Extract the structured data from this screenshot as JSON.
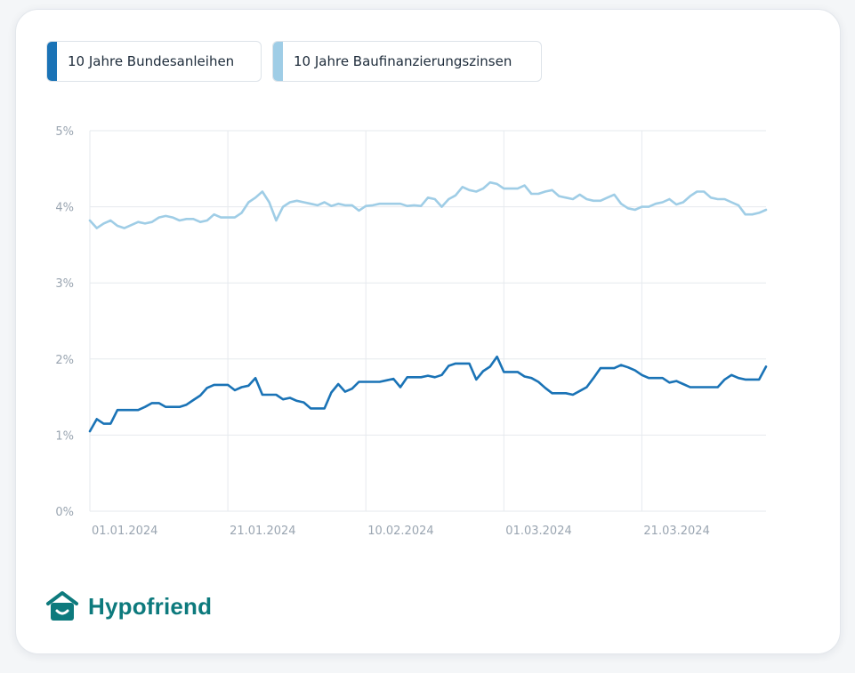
{
  "legend": [
    {
      "label": "10 Jahre Bundesanleihen",
      "color": "#1a73b6"
    },
    {
      "label": "10 Jahre Baufinanzierungszinsen",
      "color": "#9fcde6"
    }
  ],
  "brand": {
    "name": "Hypofriend",
    "color": "#0d7a7d",
    "logo_icon": "house-smile-icon"
  },
  "chart_data": {
    "type": "line",
    "title": "",
    "xlabel": "",
    "ylabel": "",
    "ylim": [
      0,
      5
    ],
    "xlim": [
      "2024-01-01",
      "2024-04-08"
    ],
    "grid": true,
    "yticks": [
      "0%",
      "1%",
      "2%",
      "3%",
      "4%",
      "5%"
    ],
    "xticks": [
      {
        "date": "2024-01-01",
        "label": "01.01.2024"
      },
      {
        "date": "2024-01-21",
        "label": "21.01.2024"
      },
      {
        "date": "2024-02-10",
        "label": "10.02.2024"
      },
      {
        "date": "2024-03-01",
        "label": "01.03.2024"
      },
      {
        "date": "2024-03-21",
        "label": "21.03.2024"
      }
    ],
    "series": [
      {
        "name": "10 Jahre Bundesanleihen",
        "color": "#1a73b6",
        "points": [
          [
            "2024-01-01",
            1.05
          ],
          [
            "2024-01-02",
            1.21
          ],
          [
            "2024-01-03",
            1.15
          ],
          [
            "2024-01-04",
            1.15
          ],
          [
            "2024-01-05",
            1.33
          ],
          [
            "2024-01-06",
            1.33
          ],
          [
            "2024-01-08",
            1.33
          ],
          [
            "2024-01-09",
            1.37
          ],
          [
            "2024-01-10",
            1.42
          ],
          [
            "2024-01-11",
            1.42
          ],
          [
            "2024-01-12",
            1.37
          ],
          [
            "2024-01-14",
            1.37
          ],
          [
            "2024-01-15",
            1.4
          ],
          [
            "2024-01-16",
            1.46
          ],
          [
            "2024-01-17",
            1.52
          ],
          [
            "2024-01-18",
            1.62
          ],
          [
            "2024-01-19",
            1.66
          ],
          [
            "2024-01-20",
            1.66
          ],
          [
            "2024-01-21",
            1.66
          ],
          [
            "2024-01-22",
            1.59
          ],
          [
            "2024-01-23",
            1.63
          ],
          [
            "2024-01-24",
            1.65
          ],
          [
            "2024-01-25",
            1.75
          ],
          [
            "2024-01-26",
            1.53
          ],
          [
            "2024-01-27",
            1.53
          ],
          [
            "2024-01-28",
            1.53
          ],
          [
            "2024-01-29",
            1.47
          ],
          [
            "2024-01-30",
            1.49
          ],
          [
            "2024-01-31",
            1.45
          ],
          [
            "2024-02-01",
            1.43
          ],
          [
            "2024-02-02",
            1.35
          ],
          [
            "2024-02-03",
            1.35
          ],
          [
            "2024-02-04",
            1.35
          ],
          [
            "2024-02-05",
            1.56
          ],
          [
            "2024-02-06",
            1.67
          ],
          [
            "2024-02-07",
            1.57
          ],
          [
            "2024-02-08",
            1.61
          ],
          [
            "2024-02-09",
            1.7
          ],
          [
            "2024-02-10",
            1.7
          ],
          [
            "2024-02-12",
            1.7
          ],
          [
            "2024-02-13",
            1.72
          ],
          [
            "2024-02-14",
            1.74
          ],
          [
            "2024-02-15",
            1.63
          ],
          [
            "2024-02-16",
            1.76
          ],
          [
            "2024-02-17",
            1.76
          ],
          [
            "2024-02-18",
            1.76
          ],
          [
            "2024-02-19",
            1.78
          ],
          [
            "2024-02-20",
            1.76
          ],
          [
            "2024-02-21",
            1.79
          ],
          [
            "2024-02-22",
            1.91
          ],
          [
            "2024-02-23",
            1.94
          ],
          [
            "2024-02-24",
            1.94
          ],
          [
            "2024-02-25",
            1.94
          ],
          [
            "2024-02-26",
            1.73
          ],
          [
            "2024-02-27",
            1.84
          ],
          [
            "2024-02-28",
            1.9
          ],
          [
            "2024-02-29",
            2.03
          ],
          [
            "2024-03-01",
            1.83
          ],
          [
            "2024-03-02",
            1.83
          ],
          [
            "2024-03-03",
            1.83
          ],
          [
            "2024-03-04",
            1.77
          ],
          [
            "2024-03-05",
            1.75
          ],
          [
            "2024-03-06",
            1.7
          ],
          [
            "2024-03-07",
            1.62
          ],
          [
            "2024-03-08",
            1.55
          ],
          [
            "2024-03-09",
            1.55
          ],
          [
            "2024-03-10",
            1.55
          ],
          [
            "2024-03-11",
            1.53
          ],
          [
            "2024-03-12",
            1.58
          ],
          [
            "2024-03-13",
            1.63
          ],
          [
            "2024-03-14",
            1.75
          ],
          [
            "2024-03-15",
            1.88
          ],
          [
            "2024-03-16",
            1.88
          ],
          [
            "2024-03-17",
            1.88
          ],
          [
            "2024-03-18",
            1.92
          ],
          [
            "2024-03-19",
            1.89
          ],
          [
            "2024-03-20",
            1.85
          ],
          [
            "2024-03-21",
            1.79
          ],
          [
            "2024-03-22",
            1.75
          ],
          [
            "2024-03-23",
            1.75
          ],
          [
            "2024-03-24",
            1.75
          ],
          [
            "2024-03-25",
            1.69
          ],
          [
            "2024-03-26",
            1.71
          ],
          [
            "2024-03-27",
            1.67
          ],
          [
            "2024-03-28",
            1.63
          ],
          [
            "2024-03-29",
            1.63
          ],
          [
            "2024-03-30",
            1.63
          ],
          [
            "2024-03-31",
            1.63
          ],
          [
            "2024-04-01",
            1.63
          ],
          [
            "2024-04-02",
            1.73
          ],
          [
            "2024-04-03",
            1.79
          ],
          [
            "2024-04-04",
            1.75
          ],
          [
            "2024-04-05",
            1.73
          ],
          [
            "2024-04-06",
            1.73
          ],
          [
            "2024-04-07",
            1.73
          ],
          [
            "2024-04-08",
            1.9
          ]
        ]
      },
      {
        "name": "10 Jahre Baufinanzierungszinsen",
        "color": "#9fcde6",
        "points": [
          [
            "2024-01-01",
            3.82
          ],
          [
            "2024-01-02",
            3.72
          ],
          [
            "2024-01-03",
            3.78
          ],
          [
            "2024-01-04",
            3.82
          ],
          [
            "2024-01-05",
            3.75
          ],
          [
            "2024-01-06",
            3.72
          ],
          [
            "2024-01-08",
            3.8
          ],
          [
            "2024-01-09",
            3.78
          ],
          [
            "2024-01-10",
            3.8
          ],
          [
            "2024-01-11",
            3.86
          ],
          [
            "2024-01-12",
            3.88
          ],
          [
            "2024-01-13",
            3.86
          ],
          [
            "2024-01-14",
            3.82
          ],
          [
            "2024-01-15",
            3.84
          ],
          [
            "2024-01-16",
            3.84
          ],
          [
            "2024-01-17",
            3.8
          ],
          [
            "2024-01-18",
            3.82
          ],
          [
            "2024-01-19",
            3.9
          ],
          [
            "2024-01-20",
            3.86
          ],
          [
            "2024-01-21",
            3.86
          ],
          [
            "2024-01-22",
            3.86
          ],
          [
            "2024-01-23",
            3.92
          ],
          [
            "2024-01-24",
            4.06
          ],
          [
            "2024-01-25",
            4.12
          ],
          [
            "2024-01-26",
            4.2
          ],
          [
            "2024-01-27",
            4.06
          ],
          [
            "2024-01-28",
            3.82
          ],
          [
            "2024-01-29",
            4.0
          ],
          [
            "2024-01-30",
            4.06
          ],
          [
            "2024-01-31",
            4.08
          ],
          [
            "2024-02-01",
            4.06
          ],
          [
            "2024-02-02",
            4.04
          ],
          [
            "2024-02-03",
            4.02
          ],
          [
            "2024-02-04",
            4.06
          ],
          [
            "2024-02-05",
            4.01
          ],
          [
            "2024-02-06",
            4.04
          ],
          [
            "2024-02-07",
            4.02
          ],
          [
            "2024-02-08",
            4.02
          ],
          [
            "2024-02-09",
            3.95
          ],
          [
            "2024-02-10",
            4.01
          ],
          [
            "2024-02-11",
            4.02
          ],
          [
            "2024-02-12",
            4.04
          ],
          [
            "2024-02-13",
            4.04
          ],
          [
            "2024-02-14",
            4.04
          ],
          [
            "2024-02-15",
            4.04
          ],
          [
            "2024-02-16",
            4.01
          ],
          [
            "2024-02-17",
            4.02
          ],
          [
            "2024-02-18",
            4.01
          ],
          [
            "2024-02-19",
            4.12
          ],
          [
            "2024-02-20",
            4.1
          ],
          [
            "2024-02-21",
            4.0
          ],
          [
            "2024-02-22",
            4.1
          ],
          [
            "2024-02-23",
            4.15
          ],
          [
            "2024-02-24",
            4.26
          ],
          [
            "2024-02-25",
            4.22
          ],
          [
            "2024-02-26",
            4.2
          ],
          [
            "2024-02-27",
            4.24
          ],
          [
            "2024-02-28",
            4.32
          ],
          [
            "2024-02-29",
            4.3
          ],
          [
            "2024-03-01",
            4.24
          ],
          [
            "2024-03-02",
            4.24
          ],
          [
            "2024-03-03",
            4.24
          ],
          [
            "2024-03-04",
            4.28
          ],
          [
            "2024-03-05",
            4.17
          ],
          [
            "2024-03-06",
            4.17
          ],
          [
            "2024-03-07",
            4.2
          ],
          [
            "2024-03-08",
            4.22
          ],
          [
            "2024-03-09",
            4.14
          ],
          [
            "2024-03-10",
            4.12
          ],
          [
            "2024-03-11",
            4.1
          ],
          [
            "2024-03-12",
            4.16
          ],
          [
            "2024-03-13",
            4.1
          ],
          [
            "2024-03-14",
            4.08
          ],
          [
            "2024-03-15",
            4.08
          ],
          [
            "2024-03-16",
            4.12
          ],
          [
            "2024-03-17",
            4.16
          ],
          [
            "2024-03-18",
            4.04
          ],
          [
            "2024-03-19",
            3.98
          ],
          [
            "2024-03-20",
            3.96
          ],
          [
            "2024-03-21",
            4.0
          ],
          [
            "2024-03-22",
            4.0
          ],
          [
            "2024-03-23",
            4.04
          ],
          [
            "2024-03-24",
            4.06
          ],
          [
            "2024-03-25",
            4.1
          ],
          [
            "2024-03-26",
            4.03
          ],
          [
            "2024-03-27",
            4.06
          ],
          [
            "2024-03-28",
            4.14
          ],
          [
            "2024-03-29",
            4.2
          ],
          [
            "2024-03-30",
            4.2
          ],
          [
            "2024-03-31",
            4.12
          ],
          [
            "2024-04-01",
            4.1
          ],
          [
            "2024-04-02",
            4.1
          ],
          [
            "2024-04-03",
            4.06
          ],
          [
            "2024-04-04",
            4.02
          ],
          [
            "2024-04-05",
            3.9
          ],
          [
            "2024-04-06",
            3.9
          ],
          [
            "2024-04-07",
            3.92
          ],
          [
            "2024-04-08",
            3.96
          ]
        ]
      }
    ]
  }
}
